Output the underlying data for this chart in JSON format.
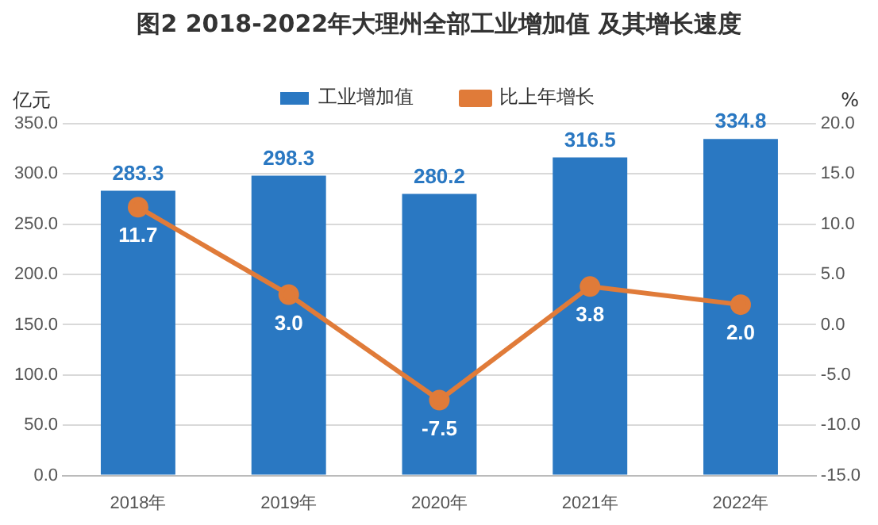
{
  "chart_data": {
    "type": "bar",
    "title": "图2 2018-2022年大理州全部工业增加值 及其增长速度",
    "ylabel": "亿元",
    "y2label": "%",
    "categories": [
      "2018年",
      "2019年",
      "2020年",
      "2021年",
      "2022年"
    ],
    "series": [
      {
        "name": "工业增加值",
        "color": "#2a78c2",
        "values": [
          283.3,
          298.3,
          280.2,
          316.5,
          334.8
        ]
      },
      {
        "name": "比上年增长",
        "type": "line",
        "axis": "y2",
        "color": "#e07b39",
        "values": [
          11.7,
          3.0,
          -7.5,
          3.8,
          2.0
        ],
        "value_labels": [
          "11.7",
          "3.0",
          "-7.5",
          "3.8",
          "2.0"
        ]
      }
    ],
    "ylim": [
      0,
      350
    ],
    "yticks": [
      {
        "value": 0,
        "label": "0.0"
      },
      {
        "value": 50,
        "label": "50.0"
      },
      {
        "value": 100,
        "label": "100.0"
      },
      {
        "value": 150,
        "label": "150.0"
      },
      {
        "value": 200,
        "label": "200.0"
      },
      {
        "value": 250,
        "label": "250.0"
      },
      {
        "value": 300,
        "label": "300.0"
      },
      {
        "value": 350,
        "label": "350.0"
      }
    ],
    "y2lim": [
      -15,
      20
    ],
    "y2ticks": [
      {
        "value": -15,
        "label": "-15.0"
      },
      {
        "value": -10,
        "label": "-10.0"
      },
      {
        "value": -5,
        "label": "-5.0"
      },
      {
        "value": 0,
        "label": "0.0"
      },
      {
        "value": 5,
        "label": "5.0"
      },
      {
        "value": 10,
        "label": "10.0"
      },
      {
        "value": 15,
        "label": "15.0"
      },
      {
        "value": 20,
        "label": "20.0"
      }
    ],
    "grid": "y",
    "legend": "top",
    "marker": "circle",
    "line_style": "solid",
    "data_labels": true
  }
}
